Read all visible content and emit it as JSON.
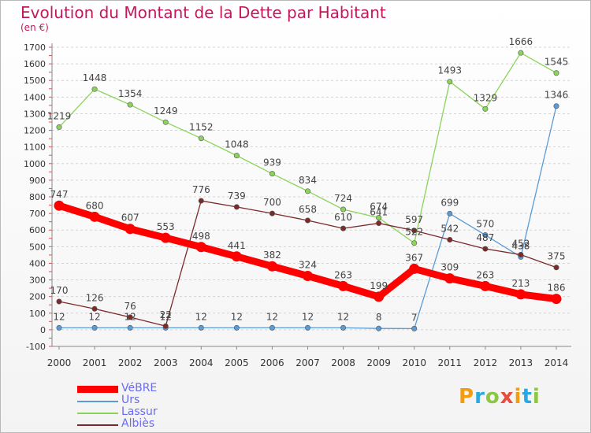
{
  "header": {
    "title": "Evolution du Montant de la Dette par Habitant",
    "subtitle": "(en €)"
  },
  "logo": {
    "text": "Proxiti",
    "colors": [
      "#f39c12",
      "#27a9e1",
      "#8dc63f",
      "#e74c3c",
      "#f39c12",
      "#27a9e1",
      "#8dc63f"
    ]
  },
  "chart_data": {
    "type": "line",
    "title": "Evolution du Montant de la Dette par Habitant",
    "subtitle": "(en €)",
    "x": [
      "2000",
      "2001",
      "2002",
      "2003",
      "2004",
      "2005",
      "2006",
      "2007",
      "2008",
      "2009",
      "2010",
      "2011",
      "2012",
      "2013",
      "2014"
    ],
    "yticks": [
      "-100",
      "0",
      "100",
      "200",
      "300",
      "400",
      "500",
      "600",
      "700",
      "800",
      "900",
      "1000",
      "1100",
      "1200",
      "1300",
      "1400",
      "1500",
      "1600",
      "1700"
    ],
    "ylim": [
      -100,
      1700
    ],
    "grid": "horizontal dashed",
    "legend_position": "bottom-left",
    "series": [
      {
        "name": "VéBRE",
        "color": "#ff0000",
        "values": [
          747,
          680,
          607,
          553,
          498,
          441,
          382,
          324,
          263,
          199,
          367,
          309,
          263,
          213,
          186
        ],
        "labels": [
          "747",
          "680",
          "607",
          "553",
          "498",
          "441",
          "382",
          "324",
          "263",
          "199",
          "367",
          "309",
          "263",
          "213",
          "186"
        ]
      },
      {
        "name": "Urs",
        "color": "#5b9bd5",
        "values": [
          12,
          12,
          12,
          12,
          12,
          12,
          12,
          12,
          12,
          8,
          7,
          699,
          570,
          438,
          1346
        ],
        "labels": [
          "12",
          "12",
          "12",
          "12",
          "12",
          "12",
          "12",
          "12",
          "12",
          "8",
          "7",
          "699",
          "570",
          "438",
          "1346"
        ]
      },
      {
        "name": "Lassur",
        "color": "#8bd35a",
        "values": [
          1219,
          1448,
          1354,
          1249,
          1152,
          1048,
          939,
          834,
          724,
          674,
          522,
          1493,
          1329,
          1666,
          1545
        ],
        "labels": [
          "1219",
          "1448",
          "1354",
          "1249",
          "1152",
          "1048",
          "939",
          "834",
          "724",
          "674",
          "522",
          "1493",
          "1329",
          "1666",
          "1545"
        ]
      },
      {
        "name": "Albiès",
        "color": "#7b2a2a",
        "values": [
          170,
          126,
          76,
          22,
          776,
          739,
          700,
          658,
          610,
          641,
          597,
          542,
          487,
          452,
          375
        ],
        "labels": [
          "170",
          "126",
          "76",
          "22",
          "776",
          "739",
          "700",
          "658",
          "610",
          "641",
          "597",
          "542",
          "487",
          "452",
          "375"
        ]
      }
    ]
  }
}
